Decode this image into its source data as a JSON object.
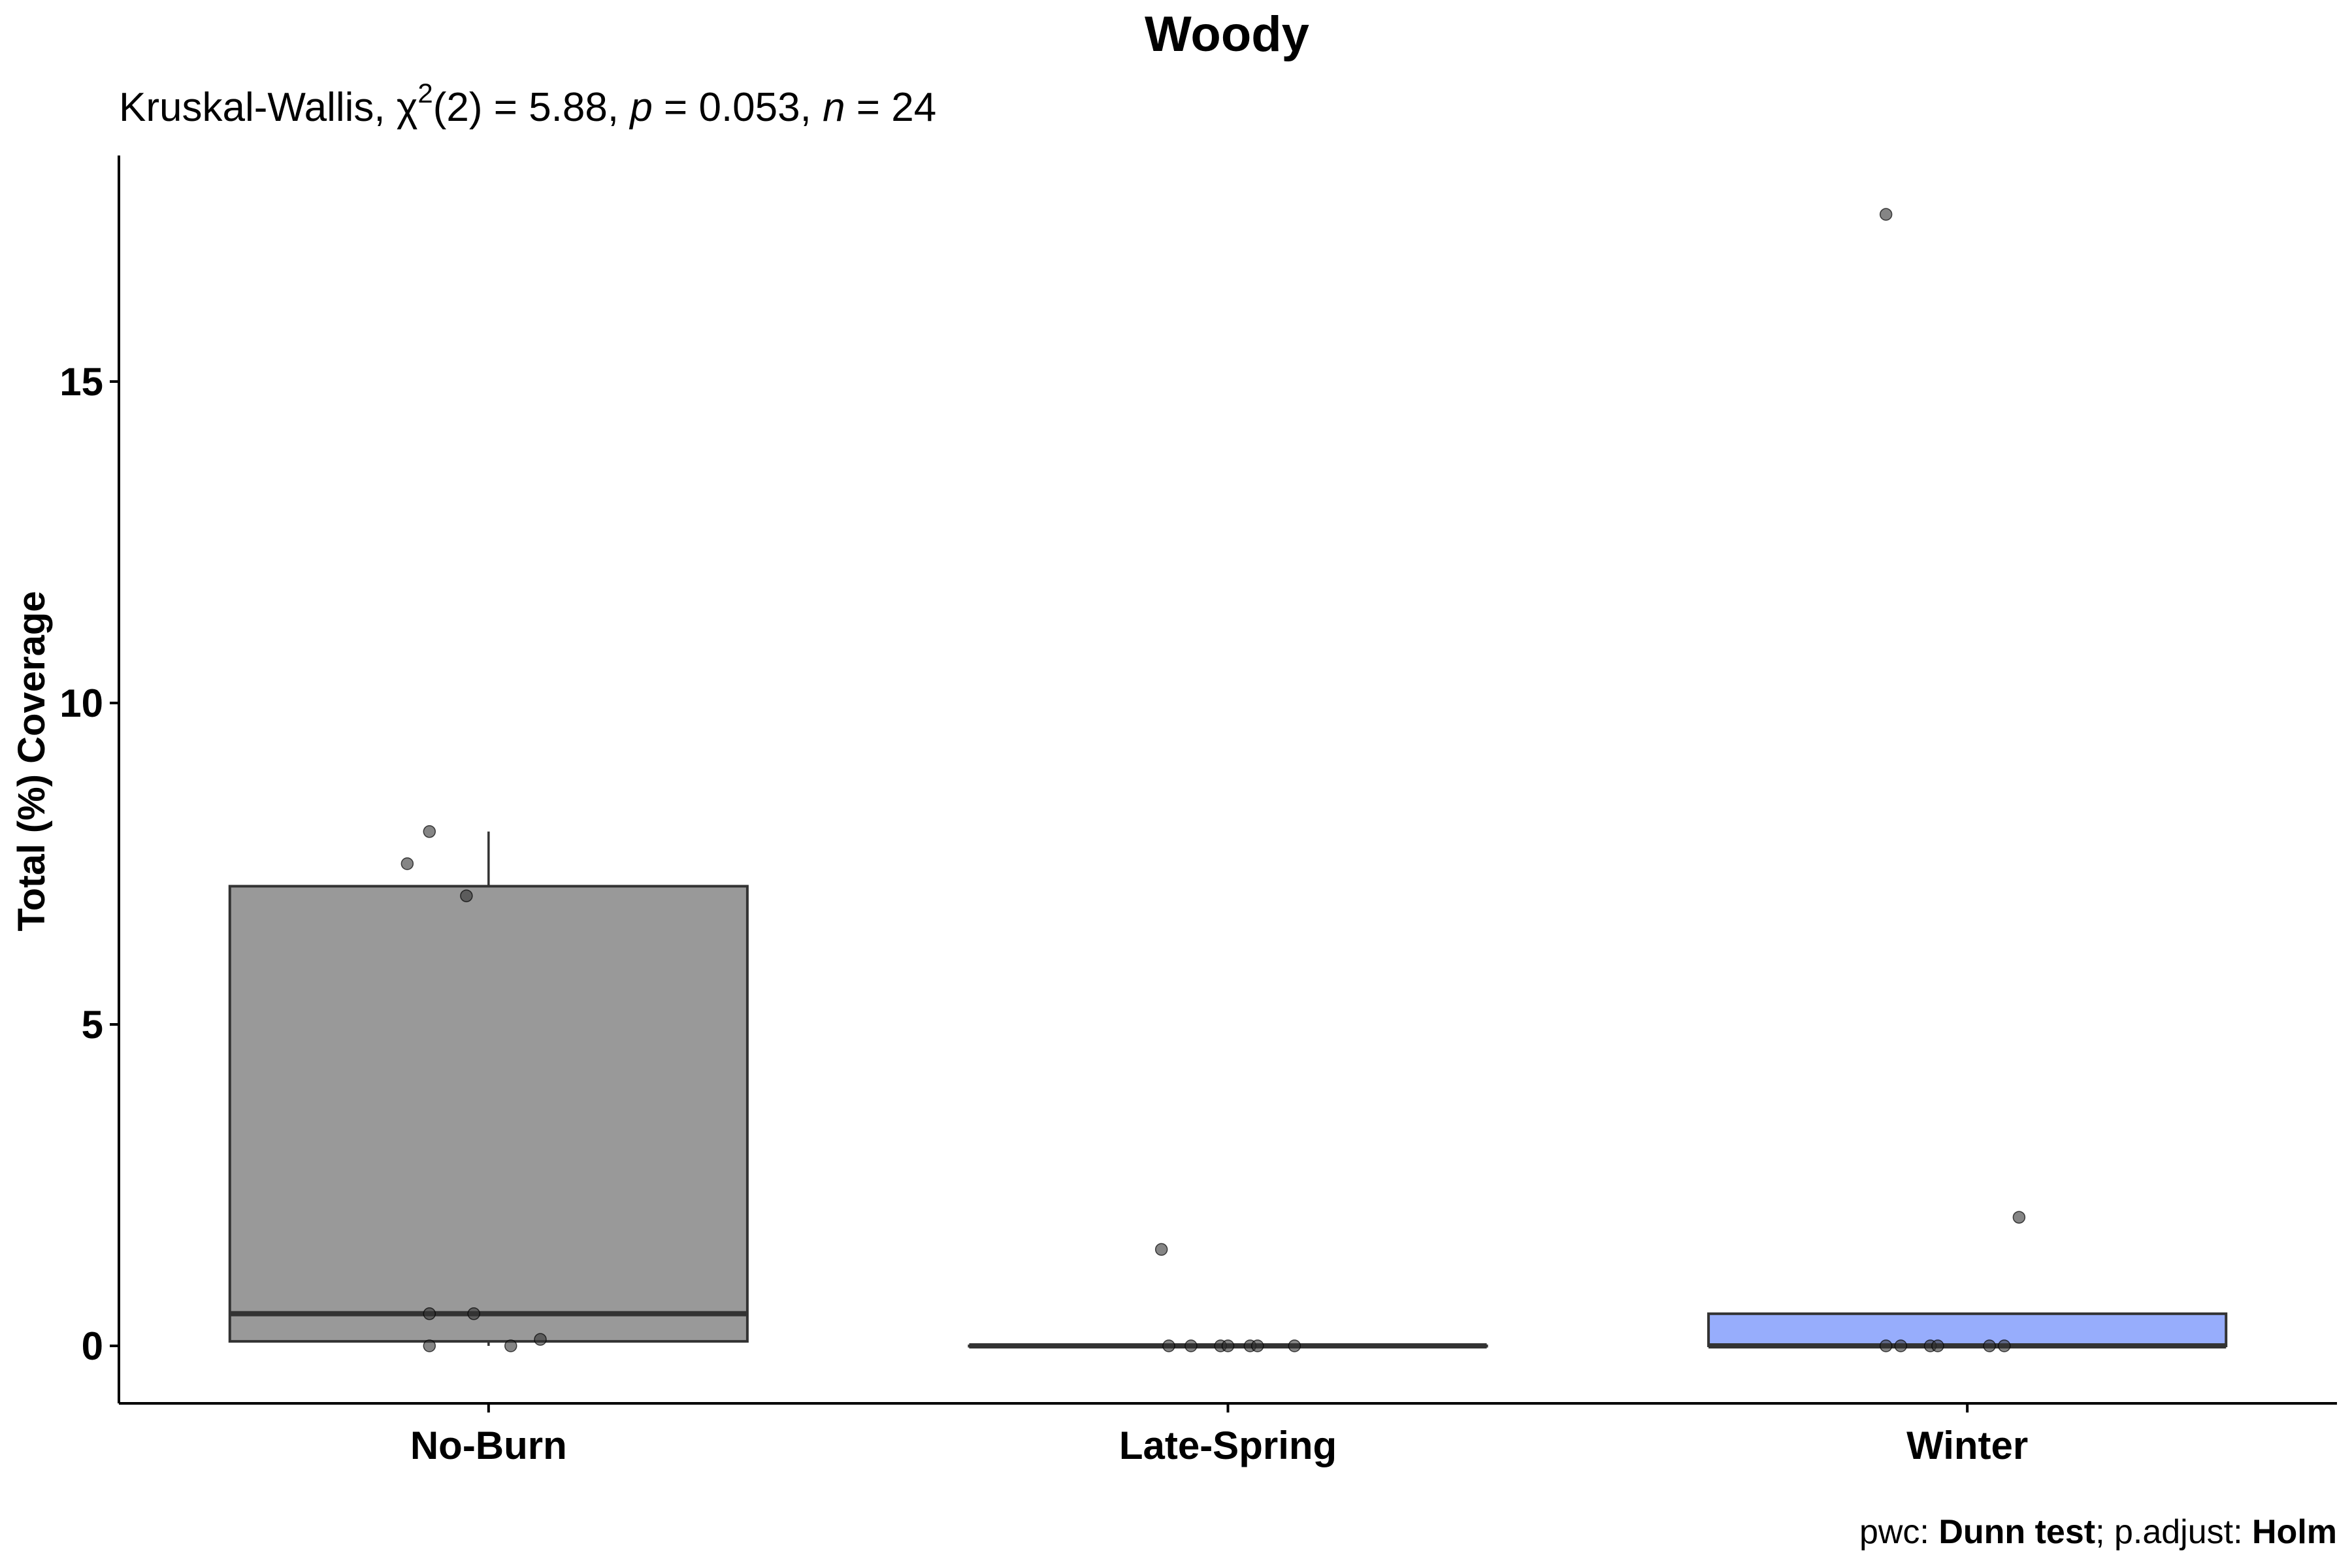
{
  "chart_data": {
    "type": "box",
    "title": "Woody",
    "subtitle": {
      "test": "Kruskal-Wallis, ",
      "stat_symbol": "χ",
      "stat_sup": "2",
      "df": "(2) = 5.88, ",
      "p_label": "p",
      "p_value": " = 0.053, ",
      "n_label": "n",
      "n_value": " = 24"
    },
    "caption": {
      "pwc_label": "pwc: ",
      "pwc_value": "Dunn test",
      "sep": "; p.adjust: ",
      "adjust_value": "Holm"
    },
    "xlabel": "",
    "ylabel": "Total (%) Coverage",
    "ylim": [
      -0.9,
      18.5
    ],
    "yticks": [
      0,
      5,
      10,
      15
    ],
    "ytick_labels": [
      "0",
      "5",
      "10",
      "15"
    ],
    "categories": [
      "No-Burn",
      "Late-Spring",
      "Winter"
    ],
    "boxes": [
      {
        "category": "No-Burn",
        "fill": "#999999",
        "q1": 0.07,
        "median": 0.5,
        "q3": 7.15,
        "whisker_low": 0.0,
        "whisker_high": 8.0
      },
      {
        "category": "Late-Spring",
        "fill": "#999999",
        "q1": 0.0,
        "median": 0.0,
        "q3": 0.0,
        "whisker_low": 0.0,
        "whisker_high": 0.0
      },
      {
        "category": "Winter",
        "fill": "#97adfc",
        "q1": 0.0,
        "median": 0.0,
        "q3": 0.5,
        "whisker_low": 0.0,
        "whisker_high": 0.5
      }
    ],
    "points": [
      {
        "category": "No-Burn",
        "jitter": -0.08,
        "y": 8.0
      },
      {
        "category": "No-Burn",
        "jitter": -0.11,
        "y": 7.5
      },
      {
        "category": "No-Burn",
        "jitter": -0.03,
        "y": 7.0
      },
      {
        "category": "No-Burn",
        "jitter": -0.08,
        "y": 0.5
      },
      {
        "category": "No-Burn",
        "jitter": -0.02,
        "y": 0.5
      },
      {
        "category": "No-Burn",
        "jitter": 0.07,
        "y": 0.1
      },
      {
        "category": "No-Burn",
        "jitter": -0.08,
        "y": 0.0
      },
      {
        "category": "No-Burn",
        "jitter": 0.03,
        "y": 0.0
      },
      {
        "category": "Late-Spring",
        "jitter": -0.09,
        "y": 1.5
      },
      {
        "category": "Late-Spring",
        "jitter": -0.08,
        "y": 0.0
      },
      {
        "category": "Late-Spring",
        "jitter": -0.05,
        "y": 0.0
      },
      {
        "category": "Late-Spring",
        "jitter": -0.01,
        "y": 0.0
      },
      {
        "category": "Late-Spring",
        "jitter": 0.0,
        "y": 0.0
      },
      {
        "category": "Late-Spring",
        "jitter": 0.03,
        "y": 0.0
      },
      {
        "category": "Late-Spring",
        "jitter": 0.04,
        "y": 0.0
      },
      {
        "category": "Late-Spring",
        "jitter": 0.09,
        "y": 0.0
      },
      {
        "category": "Winter",
        "jitter": -0.11,
        "y": 17.6
      },
      {
        "category": "Winter",
        "jitter": 0.07,
        "y": 2.0
      },
      {
        "category": "Winter",
        "jitter": -0.11,
        "y": 0.0
      },
      {
        "category": "Winter",
        "jitter": -0.09,
        "y": 0.0
      },
      {
        "category": "Winter",
        "jitter": -0.05,
        "y": 0.0
      },
      {
        "category": "Winter",
        "jitter": -0.04,
        "y": 0.0
      },
      {
        "category": "Winter",
        "jitter": 0.03,
        "y": 0.0
      },
      {
        "category": "Winter",
        "jitter": 0.05,
        "y": 0.0
      }
    ],
    "point_color": "#333333",
    "grid": false,
    "legend": "none"
  }
}
